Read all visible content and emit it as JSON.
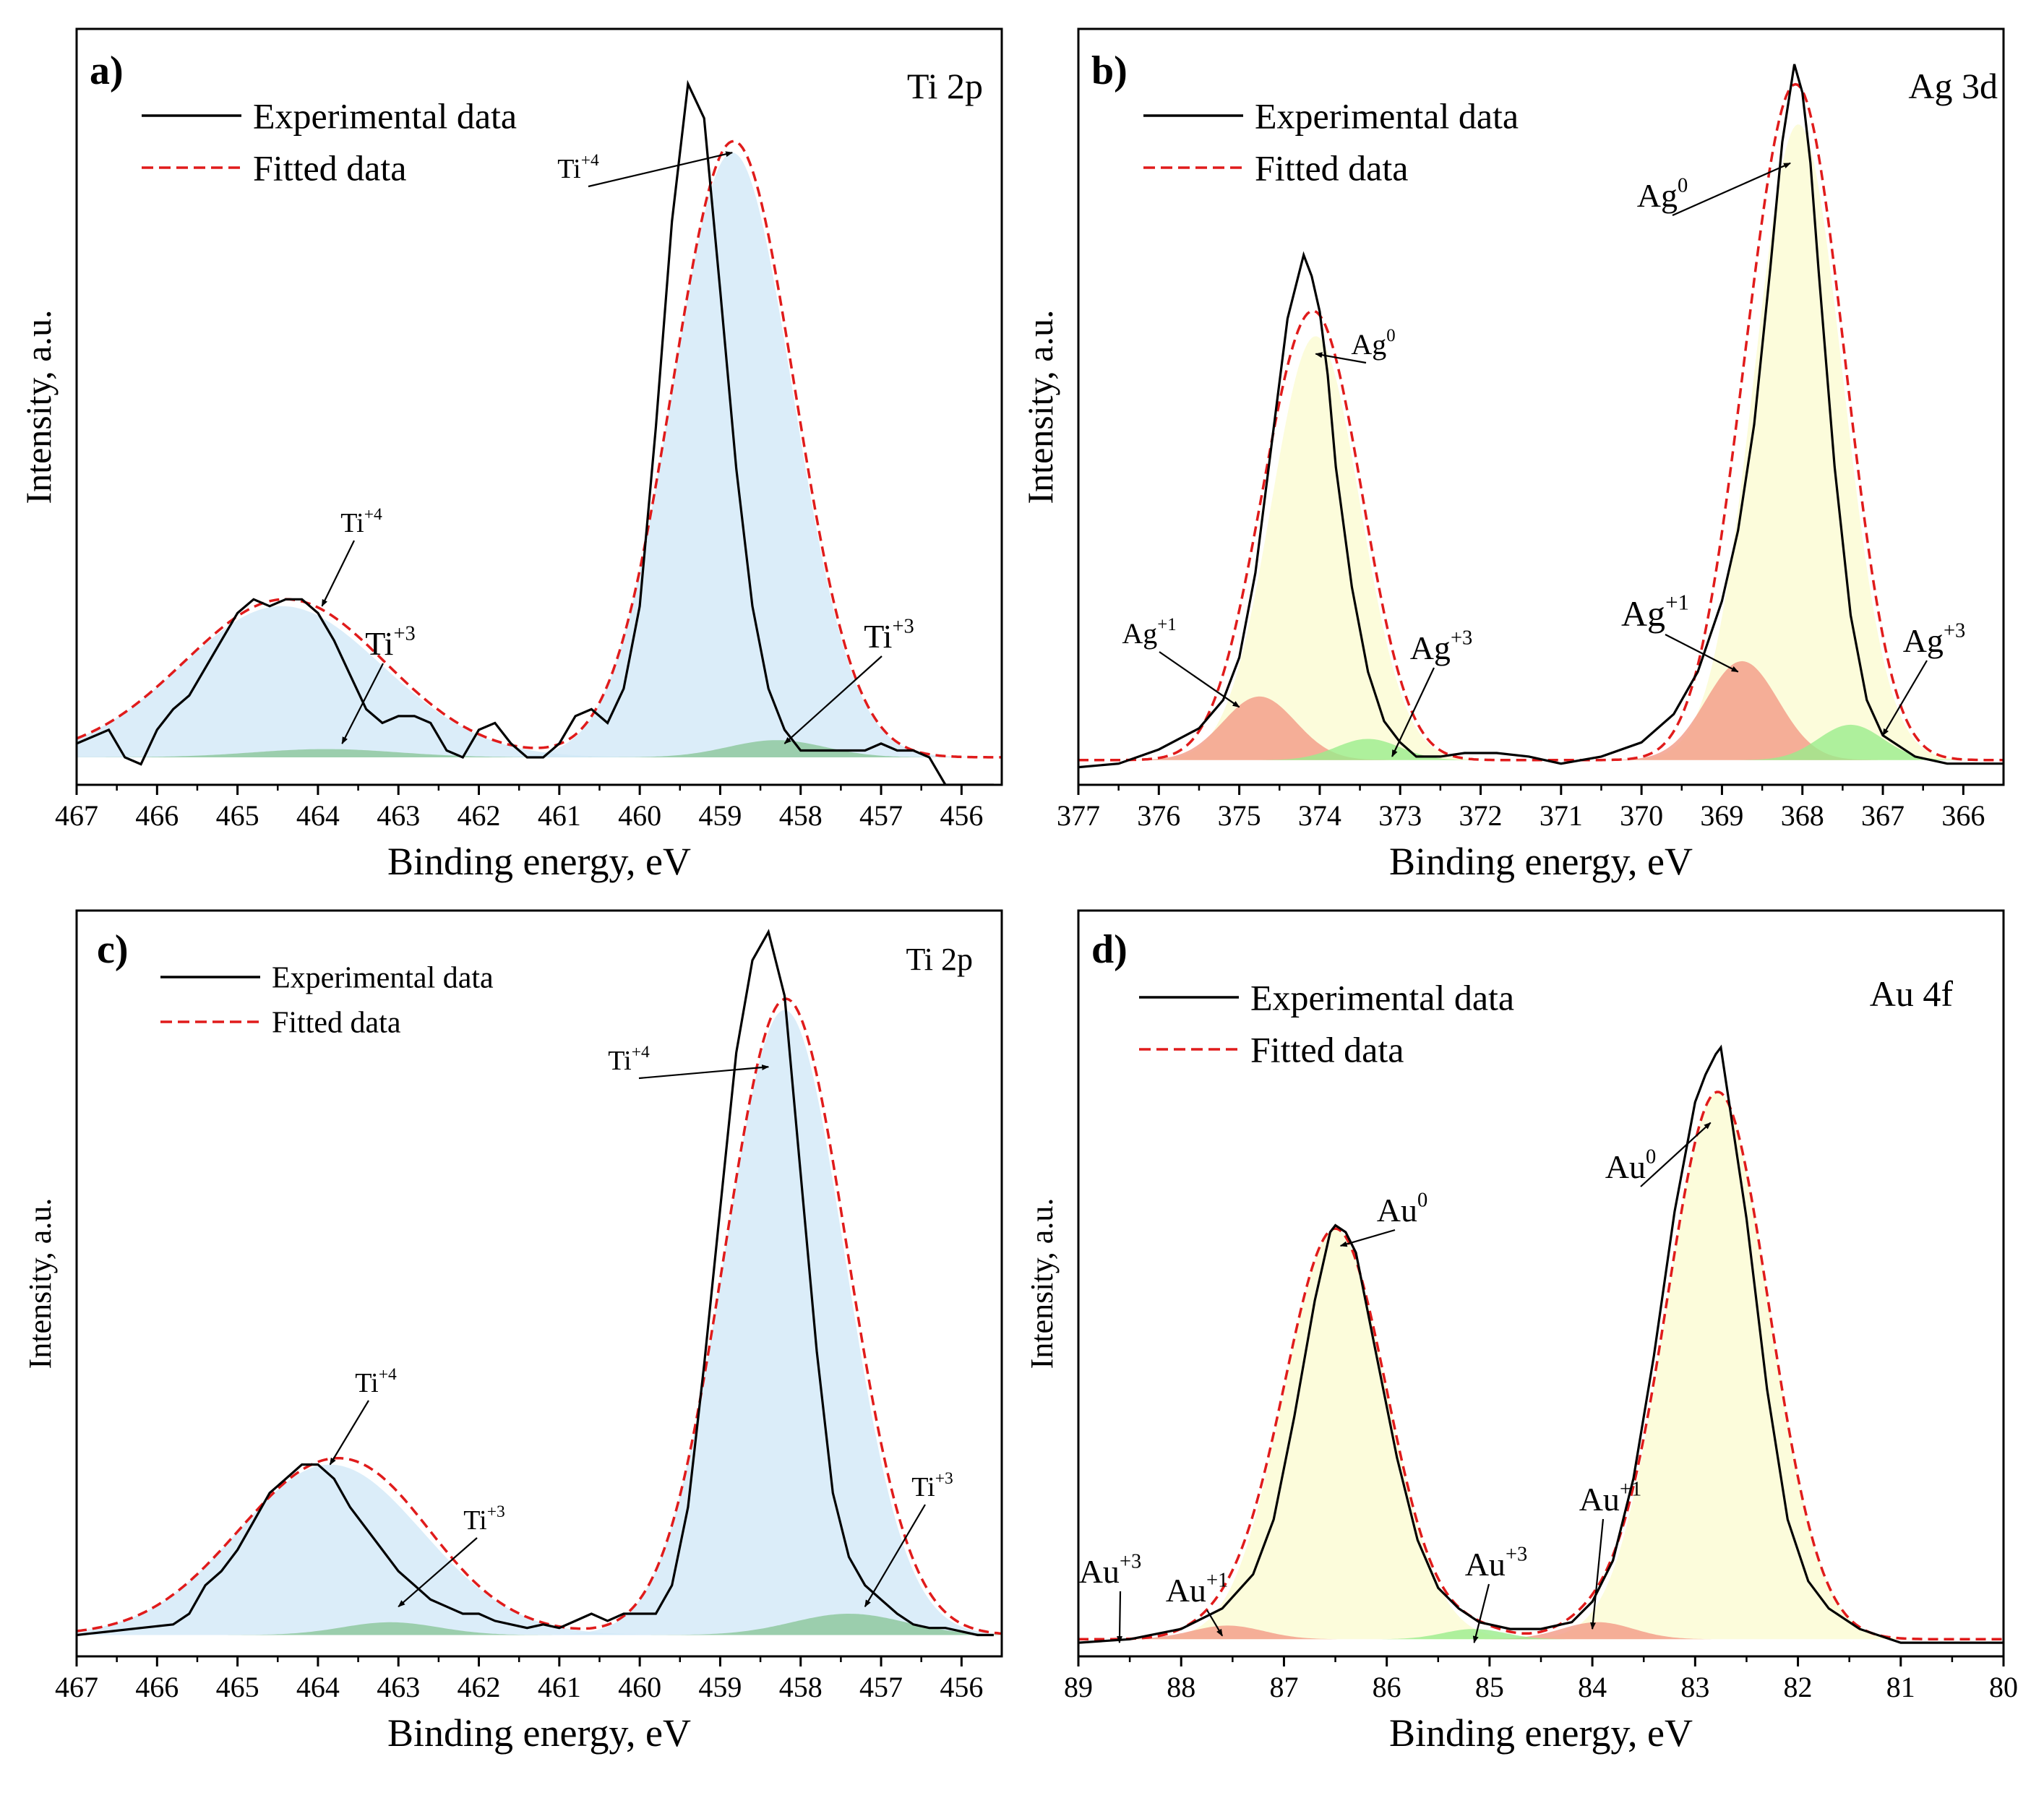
{
  "figure": {
    "colors": {
      "experimental": "#000000",
      "fitted": "#e01b1b",
      "ti4_fill": "#d2e8f8",
      "ti3_fill": "#8fc8a0",
      "metal_fill": "#fbfbd2",
      "plus1_fill": "#f29a86",
      "plus3_fill": "#9aec8c"
    }
  },
  "chart_data": [
    {
      "type": "line",
      "panel_label": "a)",
      "title": "Ti 2p",
      "xlabel": "Binding energy, eV",
      "ylabel": "Intensity, a.u.",
      "xlim": [
        467,
        455.5
      ],
      "ylim": [
        -0.04,
        1.06
      ],
      "xticks": [
        467,
        466,
        465,
        464,
        463,
        462,
        461,
        460,
        459,
        458,
        457,
        456
      ],
      "legend": {
        "placement": "top-left",
        "entries": [
          "Experimental data",
          "Fitted data"
        ]
      },
      "components": [
        {
          "name": "Ti+4",
          "center": 458.85,
          "height": 0.88,
          "width": 0.75,
          "fill": "ti4_fill"
        },
        {
          "name": "Ti+4",
          "center": 464.45,
          "height": 0.22,
          "width": 1.25,
          "fill": "ti4_fill"
        },
        {
          "name": "Ti+3",
          "center": 458.3,
          "height": 0.025,
          "width": 0.6,
          "fill": "ti3_fill"
        },
        {
          "name": "Ti+3",
          "center": 463.9,
          "height": 0.012,
          "width": 0.9,
          "fill": "ti3_fill"
        }
      ],
      "baseline": 0,
      "experimental_data": {
        "x": [
          467,
          466.8,
          466.6,
          466.4,
          466.2,
          466.0,
          465.8,
          465.6,
          465.4,
          465.2,
          465.0,
          464.8,
          464.6,
          464.4,
          464.2,
          464.0,
          463.8,
          463.6,
          463.4,
          463.2,
          463.0,
          462.8,
          462.6,
          462.4,
          462.2,
          462.0,
          461.8,
          461.6,
          461.4,
          461.2,
          461.0,
          460.8,
          460.6,
          460.4,
          460.2,
          460.0,
          459.8,
          459.6,
          459.4,
          459.2,
          459.0,
          458.8,
          458.6,
          458.4,
          458.2,
          458.0,
          457.8,
          457.6,
          457.4,
          457.2,
          457.0,
          456.8,
          456.6,
          456.4,
          456.2,
          456.0,
          455.8,
          455.6
        ],
        "y": [
          0.02,
          0.03,
          0.04,
          0.0,
          -0.01,
          0.04,
          0.07,
          0.09,
          0.13,
          0.17,
          0.21,
          0.23,
          0.22,
          0.23,
          0.23,
          0.21,
          0.17,
          0.12,
          0.07,
          0.05,
          0.06,
          0.06,
          0.05,
          0.01,
          0.0,
          0.04,
          0.05,
          0.02,
          0.0,
          0.0,
          0.02,
          0.06,
          0.07,
          0.05,
          0.1,
          0.22,
          0.48,
          0.78,
          0.98,
          0.93,
          0.68,
          0.42,
          0.22,
          0.1,
          0.04,
          0.01,
          0.01,
          0.01,
          0.01,
          0.01,
          0.02,
          0.01,
          0.01,
          0.0,
          -0.04,
          -0.04,
          -0.04,
          -0.04
        ]
      },
      "annotations": [
        {
          "ion": "Ti",
          "charge": "+4",
          "x": 458.85,
          "y": 0.88
        },
        {
          "ion": "Ti",
          "charge": "+4",
          "x": 463.95,
          "y": 0.22
        },
        {
          "ion": "Ti",
          "charge": "+3",
          "x": 463.7,
          "y": 0.02
        },
        {
          "ion": "Ti",
          "charge": "+3",
          "x": 458.2,
          "y": 0.02
        }
      ]
    },
    {
      "type": "line",
      "panel_label": "b)",
      "title": "Ag 3d",
      "xlabel": "Binding energy, eV",
      "ylabel": "Intensity, a.u.",
      "xlim": [
        377,
        365.5
      ],
      "ylim": [
        -0.03,
        1.04
      ],
      "xticks": [
        377,
        376,
        375,
        374,
        373,
        372,
        371,
        370,
        369,
        368,
        367,
        366
      ],
      "legend": {
        "placement": "top-left",
        "entries": [
          "Experimental data",
          "Fitted data"
        ]
      },
      "components": [
        {
          "name": "Ag0",
          "center": 368.05,
          "height": 0.9,
          "width": 0.55,
          "fill": "metal_fill"
        },
        {
          "name": "Ag0",
          "center": 374.05,
          "height": 0.6,
          "width": 0.55,
          "fill": "metal_fill"
        },
        {
          "name": "Ag+1",
          "center": 368.75,
          "height": 0.14,
          "width": 0.45,
          "fill": "plus1_fill"
        },
        {
          "name": "Ag+1",
          "center": 374.75,
          "height": 0.09,
          "width": 0.45,
          "fill": "plus1_fill"
        },
        {
          "name": "Ag+3",
          "center": 367.4,
          "height": 0.05,
          "width": 0.4,
          "fill": "plus3_fill"
        },
        {
          "name": "Ag+3",
          "center": 373.4,
          "height": 0.03,
          "width": 0.4,
          "fill": "plus3_fill"
        }
      ],
      "baseline": 0.005,
      "experimental_data": {
        "x": [
          377,
          376.5,
          376,
          375.5,
          375.2,
          375.0,
          374.8,
          374.6,
          374.4,
          374.2,
          374.1,
          374.0,
          373.9,
          373.8,
          373.6,
          373.4,
          373.2,
          373.0,
          372.8,
          372.5,
          372.2,
          371.8,
          371.4,
          371.0,
          370.5,
          370.0,
          369.6,
          369.3,
          369.0,
          368.8,
          368.6,
          368.4,
          368.25,
          368.1,
          368.0,
          367.9,
          367.8,
          367.6,
          367.4,
          367.2,
          367.0,
          366.6,
          366.2,
          365.8,
          365.5
        ],
        "y": [
          -0.005,
          0.0,
          0.02,
          0.05,
          0.09,
          0.15,
          0.27,
          0.45,
          0.63,
          0.72,
          0.69,
          0.64,
          0.55,
          0.42,
          0.25,
          0.13,
          0.06,
          0.03,
          0.01,
          0.01,
          0.015,
          0.015,
          0.01,
          0.0,
          0.01,
          0.03,
          0.07,
          0.13,
          0.23,
          0.33,
          0.48,
          0.7,
          0.88,
          0.99,
          0.95,
          0.85,
          0.7,
          0.42,
          0.21,
          0.09,
          0.04,
          0.01,
          0.0,
          0.0,
          0.0
        ]
      },
      "annotations": [
        {
          "ion": "Ag",
          "charge": "0",
          "x": 374.05,
          "y": 0.58
        },
        {
          "ion": "Ag",
          "charge": "+1",
          "x": 375.0,
          "y": 0.08
        },
        {
          "ion": "Ag",
          "charge": "+3",
          "x": 373.1,
          "y": 0.01
        },
        {
          "ion": "Ag",
          "charge": "0",
          "x": 368.15,
          "y": 0.85
        },
        {
          "ion": "Ag",
          "charge": "+1",
          "x": 368.8,
          "y": 0.13
        },
        {
          "ion": "Ag",
          "charge": "+3",
          "x": 367.0,
          "y": 0.04
        }
      ]
    },
    {
      "type": "line",
      "panel_label": "c)",
      "title": "Ti 2p",
      "xlabel": "Binding energy, eV",
      "ylabel": "Intensity, a.u.",
      "xlim": [
        467,
        455.5
      ],
      "ylim": [
        -0.03,
        1.02
      ],
      "xticks": [
        467,
        466,
        465,
        464,
        463,
        462,
        461,
        460,
        459,
        458,
        457,
        456
      ],
      "legend": {
        "placement": "top-left",
        "entries": [
          "Experimental data",
          "Fitted data"
        ]
      },
      "components": [
        {
          "name": "Ti+4",
          "center": 458.2,
          "height": 0.88,
          "width": 0.75,
          "fill": "ti4_fill"
        },
        {
          "name": "Ti+4",
          "center": 463.85,
          "height": 0.24,
          "width": 1.15,
          "fill": "ti4_fill"
        },
        {
          "name": "Ti+3",
          "center": 457.4,
          "height": 0.03,
          "width": 0.7,
          "fill": "ti3_fill"
        },
        {
          "name": "Ti+3",
          "center": 463.1,
          "height": 0.018,
          "width": 0.6,
          "fill": "ti3_fill"
        }
      ],
      "baseline": 0,
      "experimental_data": {
        "x": [
          467,
          466.6,
          466.2,
          465.8,
          465.6,
          465.4,
          465.2,
          465.0,
          464.8,
          464.6,
          464.4,
          464.2,
          464.0,
          463.8,
          463.6,
          463.4,
          463.2,
          463.0,
          462.8,
          462.6,
          462.4,
          462.2,
          462.0,
          461.8,
          461.6,
          461.4,
          461.2,
          461.0,
          460.8,
          460.6,
          460.4,
          460.2,
          460.0,
          459.8,
          459.6,
          459.4,
          459.2,
          459.0,
          458.8,
          458.6,
          458.4,
          458.2,
          458.0,
          457.8,
          457.6,
          457.4,
          457.2,
          457.0,
          456.8,
          456.6,
          456.4,
          456.2,
          456.0,
          455.8,
          455.6
        ],
        "y": [
          0.0,
          0.005,
          0.01,
          0.015,
          0.03,
          0.07,
          0.09,
          0.12,
          0.16,
          0.2,
          0.22,
          0.24,
          0.24,
          0.22,
          0.18,
          0.15,
          0.12,
          0.09,
          0.07,
          0.05,
          0.04,
          0.03,
          0.03,
          0.02,
          0.015,
          0.01,
          0.015,
          0.01,
          0.02,
          0.03,
          0.02,
          0.03,
          0.03,
          0.03,
          0.07,
          0.18,
          0.38,
          0.6,
          0.82,
          0.95,
          0.99,
          0.9,
          0.65,
          0.4,
          0.2,
          0.11,
          0.07,
          0.05,
          0.03,
          0.015,
          0.01,
          0.01,
          0.005,
          0.0,
          0.0
        ]
      },
      "annotations": [
        {
          "ion": "Ti",
          "charge": "+4",
          "x": 458.4,
          "y": 0.8
        },
        {
          "ion": "Ti",
          "charge": "+4",
          "x": 463.85,
          "y": 0.24
        },
        {
          "ion": "Ti",
          "charge": "+3",
          "x": 463.0,
          "y": 0.04
        },
        {
          "ion": "Ti",
          "charge": "+3",
          "x": 457.2,
          "y": 0.04
        }
      ]
    },
    {
      "type": "line",
      "panel_label": "d)",
      "title": "Au 4f",
      "xlabel": "Binding energy, eV",
      "ylabel": "Intensity, a.u.",
      "xlim": [
        89,
        80
      ],
      "ylim": [
        -0.02,
        1.07
      ],
      "xticks": [
        89,
        88,
        87,
        86,
        85,
        84,
        83,
        82,
        81,
        80
      ],
      "legend": {
        "placement": "top-left",
        "entries": [
          "Experimental data",
          "Fitted data"
        ]
      },
      "components": [
        {
          "name": "Au0",
          "center": 82.78,
          "height": 0.8,
          "width": 0.5,
          "fill": "metal_fill"
        },
        {
          "name": "Au0",
          "center": 86.5,
          "height": 0.6,
          "width": 0.5,
          "fill": "metal_fill"
        },
        {
          "name": "Au+1",
          "center": 83.95,
          "height": 0.025,
          "width": 0.35,
          "fill": "plus1_fill"
        },
        {
          "name": "Au+1",
          "center": 87.55,
          "height": 0.02,
          "width": 0.35,
          "fill": "plus1_fill"
        },
        {
          "name": "Au+3",
          "center": 85.15,
          "height": 0.015,
          "width": 0.3,
          "fill": "plus3_fill"
        }
      ],
      "baseline": 0.005,
      "experimental_data": {
        "x": [
          89,
          88.5,
          88.0,
          87.6,
          87.3,
          87.1,
          86.9,
          86.7,
          86.55,
          86.5,
          86.4,
          86.3,
          86.1,
          85.9,
          85.7,
          85.5,
          85.3,
          85.1,
          84.8,
          84.5,
          84.2,
          84.0,
          83.8,
          83.6,
          83.4,
          83.2,
          83.0,
          82.9,
          82.8,
          82.75,
          82.7,
          82.6,
          82.5,
          82.3,
          82.1,
          81.9,
          81.7,
          81.4,
          81.0,
          80.5,
          80.0
        ],
        "y": [
          0.0,
          0.005,
          0.02,
          0.05,
          0.1,
          0.18,
          0.33,
          0.5,
          0.6,
          0.61,
          0.6,
          0.57,
          0.42,
          0.27,
          0.15,
          0.08,
          0.05,
          0.03,
          0.02,
          0.02,
          0.03,
          0.06,
          0.12,
          0.24,
          0.42,
          0.63,
          0.79,
          0.83,
          0.86,
          0.87,
          0.82,
          0.72,
          0.62,
          0.37,
          0.18,
          0.09,
          0.05,
          0.02,
          0.0,
          0.0,
          0.0
        ]
      },
      "annotations": [
        {
          "ion": "Au",
          "charge": "0",
          "x": 86.45,
          "y": 0.58
        },
        {
          "ion": "Au",
          "charge": "0",
          "x": 82.85,
          "y": 0.76
        },
        {
          "ion": "Au",
          "charge": "+3",
          "x": 88.6,
          "y": 0.0
        },
        {
          "ion": "Au",
          "charge": "+1",
          "x": 87.6,
          "y": 0.01
        },
        {
          "ion": "Au",
          "charge": "+3",
          "x": 85.15,
          "y": 0.0
        },
        {
          "ion": "Au",
          "charge": "+1",
          "x": 84.0,
          "y": 0.02
        }
      ]
    }
  ]
}
